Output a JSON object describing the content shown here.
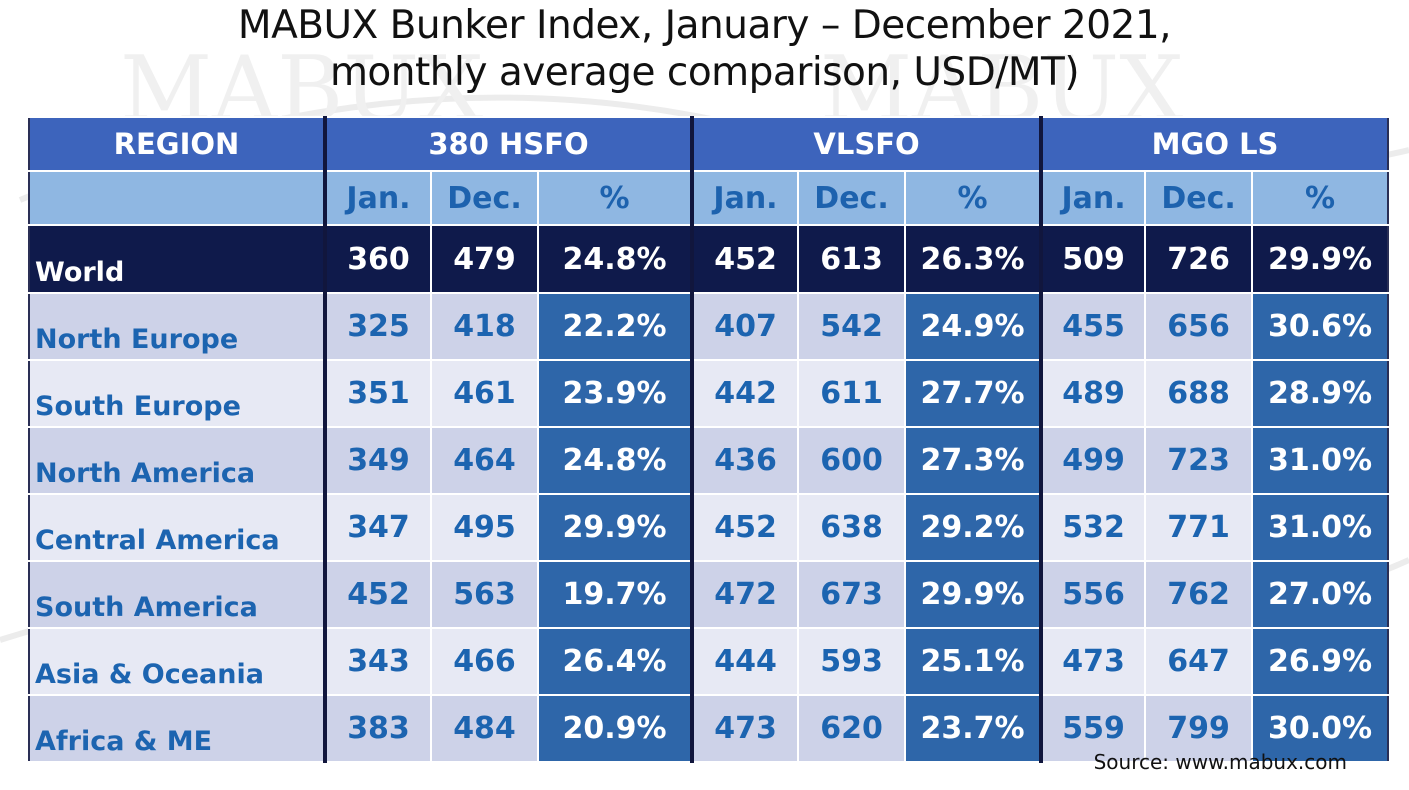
{
  "title": {
    "line1": "MABUX Bunker Index, January – December 2021,",
    "line2": "monthly average comparison, USD/MT)"
  },
  "header": {
    "region": "REGION",
    "groups": [
      "380 HSFO",
      "VLSFO",
      "MGO LS"
    ],
    "sub": [
      "Jan.",
      "Dec.",
      "%"
    ]
  },
  "source": "Source: www.mabux.com",
  "colors": {
    "header_blue": "#3d64bc",
    "subheader_light": "#8fb7e2",
    "world_navy": "#0f1a4b",
    "pct_cell_blue": "#2e66a9",
    "text_blue": "#1c64b0"
  },
  "chart_data": {
    "type": "table",
    "title": "MABUX Bunker Index, January – December 2021, monthly average comparison, USD/MT)",
    "columns": [
      "REGION",
      "380 HSFO Jan.",
      "380 HSFO Dec.",
      "380 HSFO %",
      "VLSFO Jan.",
      "VLSFO Dec.",
      "VLSFO %",
      "MGO LS Jan.",
      "MGO LS Dec.",
      "MGO LS %"
    ],
    "rows": [
      {
        "region": "World",
        "values": [
          "360",
          "479",
          "24.8%",
          "452",
          "613",
          "26.3%",
          "509",
          "726",
          "29.9%"
        ]
      },
      {
        "region": "North Europe",
        "values": [
          "325",
          "418",
          "22.2%",
          "407",
          "542",
          "24.9%",
          "455",
          "656",
          "30.6%"
        ]
      },
      {
        "region": "South Europe",
        "values": [
          "351",
          "461",
          "23.9%",
          "442",
          "611",
          "27.7%",
          "489",
          "688",
          "28.9%"
        ]
      },
      {
        "region": "North America",
        "values": [
          "349",
          "464",
          "24.8%",
          "436",
          "600",
          "27.3%",
          "499",
          "723",
          "31.0%"
        ]
      },
      {
        "region": "Central America",
        "values": [
          "347",
          "495",
          "29.9%",
          "452",
          "638",
          "29.2%",
          "532",
          "771",
          "31.0%"
        ]
      },
      {
        "region": "South America",
        "values": [
          "452",
          "563",
          "19.7%",
          "472",
          "673",
          "29.9%",
          "556",
          "762",
          "27.0%"
        ]
      },
      {
        "region": "Asia & Oceania",
        "values": [
          "343",
          "466",
          "26.4%",
          "444",
          "593",
          "25.1%",
          "473",
          "647",
          "26.9%"
        ]
      },
      {
        "region": "Africa & ME",
        "values": [
          "383",
          "484",
          "20.9%",
          "473",
          "620",
          "23.7%",
          "559",
          "799",
          "30.0%"
        ]
      }
    ]
  }
}
